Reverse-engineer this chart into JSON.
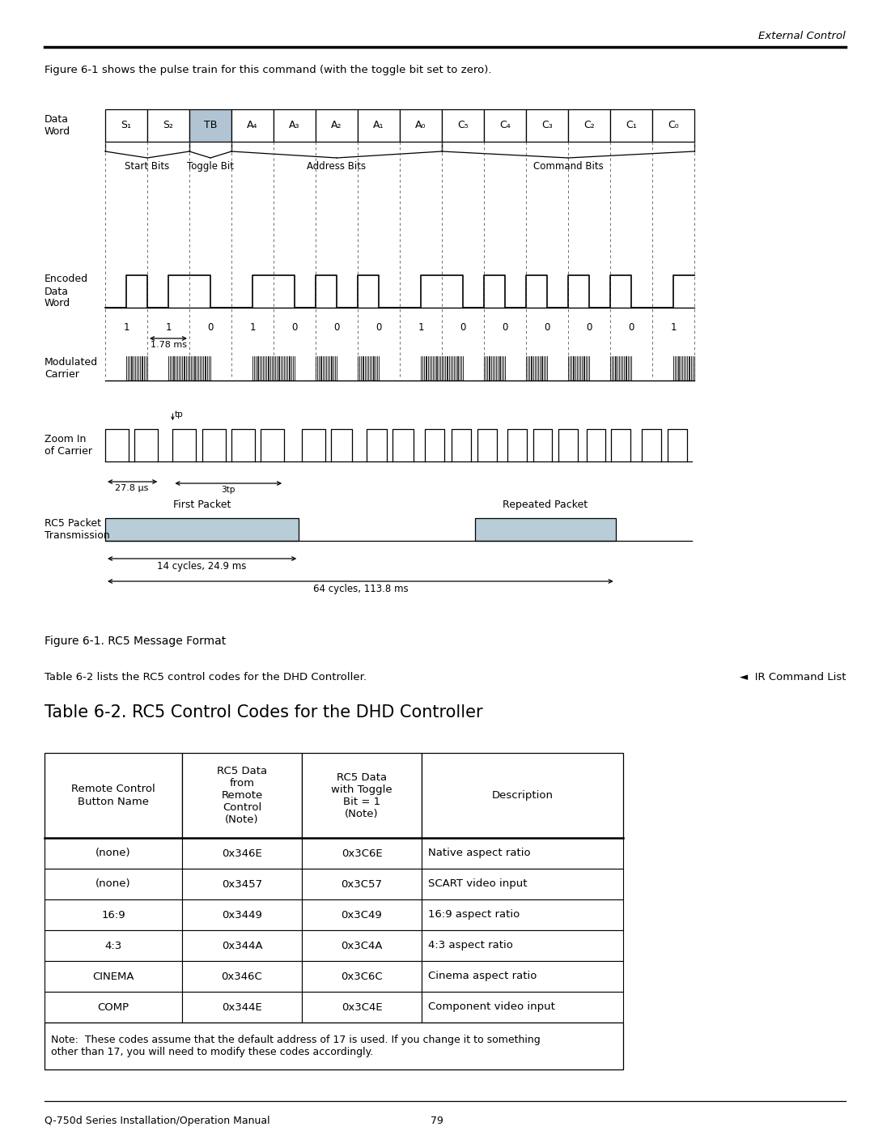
{
  "page_header": "External Control",
  "intro_text": "Figure 6-1 shows the pulse train for this command (with the toggle bit set to zero).",
  "figure_caption": "Figure 6-1. RC5 Message Format",
  "table_intro": "Table 6-2 lists the RC5 control codes for the DHD Controller.",
  "ir_command_label": "◄  IR Command List",
  "table_title": "Table 6-2. RC5 Control Codes for the DHD Controller",
  "table_headers": [
    "Remote Control\nButton Name",
    "RC5 Data\nfrom\nRemote\nControl\n(Note)",
    "RC5 Data\nwith Toggle\nBit = 1\n(Note)",
    "Description"
  ],
  "table_rows": [
    [
      "(none)",
      "0x346E",
      "0x3C6E",
      "Native aspect ratio"
    ],
    [
      "(none)",
      "0x3457",
      "0x3C57",
      "SCART video input"
    ],
    [
      "16:9",
      "0x3449",
      "0x3C49",
      "16:9 aspect ratio"
    ],
    [
      "4:3",
      "0x344A",
      "0x3C4A",
      "4:3 aspect ratio"
    ],
    [
      "CINEMA",
      "0x346C",
      "0x3C6C",
      "Cinema aspect ratio"
    ],
    [
      "COMP",
      "0x344E",
      "0x3C4E",
      "Component video input"
    ]
  ],
  "table_note": "Note:  These codes assume that the default address of 17 is used. If you change it to something\nother than 17, you will need to modify these codes accordingly.",
  "footer_left": "Q-750d Series Installation/Operation Manual",
  "footer_center": "79",
  "data_word_bits": [
    "S₁",
    "S₂",
    "TB",
    "A₄",
    "A₃",
    "A₂",
    "A₁",
    "A₀",
    "C₅",
    "C₄",
    "C₃",
    "C₂",
    "C₁",
    "C₀"
  ],
  "bit_values": [
    1,
    1,
    0,
    1,
    0,
    0,
    0,
    1,
    0,
    0,
    0,
    0,
    0,
    1
  ],
  "tb_fill_color": "#b0c4d4",
  "background_color": "#ffffff"
}
